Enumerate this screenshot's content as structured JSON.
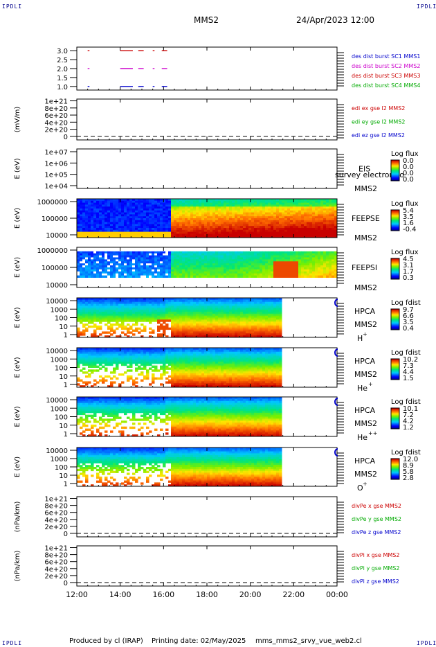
{
  "corners": {
    "tl": "IPDLI",
    "tr": "IPDLI",
    "bl": "IPDLI",
    "br": "IPDLI"
  },
  "header": {
    "spacecraft": "MMS2",
    "date": "24/Apr/2023 12:00"
  },
  "footer": {
    "produced_by": "Produced by cl (IRAP)",
    "printing_date": "Printing date: 02/May/2025",
    "script": "mms_mms2_srvy_vue_web2.cl"
  },
  "colors": {
    "mms1": "#0000cc",
    "mms2": "#cc00cc",
    "mms3": "#cc0000",
    "mms4": "#00aa00",
    "x": "#cc0000",
    "y": "#00aa00",
    "z": "#0000cc"
  },
  "chart_data": [
    {
      "type": "line",
      "id": "burst",
      "yticks": [
        "3.0",
        "2.5",
        "2.0",
        "1.5",
        "1.0"
      ],
      "ylim": [
        0.8,
        3.2
      ],
      "legend": [
        "des dist burst SC1 MMS1",
        "des dist burst SC2 MMS2",
        "des dist burst SC3 MMS3",
        "des dist burst SC4 MMS4"
      ],
      "series": [
        {
          "name": "des dist burst SC3 MMS3",
          "y": 3.0,
          "intervals": [
            [
              "12:30",
              "12:35"
            ],
            [
              "14:00",
              "14:35"
            ],
            [
              "14:50",
              "15:05"
            ],
            [
              "15:30",
              "15:35"
            ],
            [
              "15:55",
              "16:10"
            ]
          ]
        },
        {
          "name": "des dist burst SC2 MMS2",
          "y": 2.0,
          "intervals": [
            [
              "12:30",
              "12:35"
            ],
            [
              "14:00",
              "14:35"
            ],
            [
              "14:50",
              "15:05"
            ],
            [
              "15:30",
              "15:35"
            ],
            [
              "15:55",
              "16:10"
            ]
          ]
        },
        {
          "name": "des dist burst SC1 MMS1",
          "y": 1.0,
          "intervals": [
            [
              "12:30",
              "12:35"
            ],
            [
              "14:00",
              "14:35"
            ],
            [
              "14:50",
              "15:05"
            ],
            [
              "15:30",
              "15:35"
            ],
            [
              "15:55",
              "16:10"
            ]
          ]
        }
      ]
    },
    {
      "type": "line",
      "id": "edi",
      "ylabel": "(mV/m)",
      "yticks": [
        "1e+21",
        "8e+20",
        "6e+20",
        "4e+20",
        "2e+20",
        "0"
      ],
      "ylim": [
        -1e+20,
        1.05e+21
      ],
      "legend": [
        "edi ex gse l2 MMS2",
        "edi ey gse l2 MMS2",
        "edi ez gse l2 MMS2"
      ],
      "series": []
    },
    {
      "type": "heatmap",
      "id": "eis",
      "ylabel": "E (eV)",
      "yticks": [
        "1e+07",
        "1e+06",
        "1e+05",
        "1e+04"
      ],
      "instrument": "EIS",
      "spacecraft": "MMS2",
      "overlay_label": "survey electron to",
      "colorbar": {
        "title": "Log flux",
        "ticks": [
          "0.0",
          "0.0",
          "0.0",
          "0.0"
        ]
      }
    },
    {
      "type": "heatmap",
      "id": "feeps-e",
      "ylabel": "E (eV)",
      "yticks": [
        "1000000",
        "100000",
        "10000"
      ],
      "instrument": "FEEPSE",
      "spacecraft": "MMS2",
      "colorbar": {
        "title": "Log flux",
        "ticks": [
          "5.4",
          "3.5",
          "1.6",
          "-0.4"
        ]
      }
    },
    {
      "type": "heatmap",
      "id": "feeps-i",
      "ylabel": "E (eV)",
      "yticks": [
        "1000000",
        "100000",
        "10000"
      ],
      "instrument": "FEEPSI",
      "spacecraft": "MMS2",
      "colorbar": {
        "title": "Log flux",
        "ticks": [
          "4.5",
          "3.1",
          "1.7",
          "0.3"
        ]
      }
    },
    {
      "type": "heatmap",
      "id": "hpca-h",
      "ylabel": "E (eV)",
      "yticks": [
        "10000",
        "1000",
        "100",
        "10",
        "1"
      ],
      "instrument": "HPCA",
      "spacecraft": "MMS2",
      "species": "H",
      "charge": "+",
      "colorbar": {
        "title": "Log fdist",
        "ticks": [
          "9.7",
          "6.6",
          "3.5",
          "0.4"
        ]
      }
    },
    {
      "type": "heatmap",
      "id": "hpca-he",
      "ylabel": "E (eV)",
      "yticks": [
        "10000",
        "1000",
        "100",
        "10",
        "1"
      ],
      "instrument": "HPCA",
      "spacecraft": "MMS2",
      "species": "He",
      "charge": "+",
      "colorbar": {
        "title": "Log fdist",
        "ticks": [
          "10.2",
          "7.3",
          "4.4",
          "1.5"
        ]
      }
    },
    {
      "type": "heatmap",
      "id": "hpca-hepp",
      "ylabel": "E (eV)",
      "yticks": [
        "10000",
        "1000",
        "100",
        "10",
        "1"
      ],
      "instrument": "HPCA",
      "spacecraft": "MMS2",
      "species": "He",
      "charge": "++",
      "colorbar": {
        "title": "Log fdist",
        "ticks": [
          "10.1",
          "7.2",
          "4.2",
          "1.2"
        ]
      }
    },
    {
      "type": "heatmap",
      "id": "hpca-o",
      "ylabel": "E (eV)",
      "yticks": [
        "10000",
        "1000",
        "100",
        "10",
        "1"
      ],
      "instrument": "HPCA",
      "spacecraft": "MMS2",
      "species": "O",
      "charge": "+",
      "colorbar": {
        "title": "Log fdist",
        "ticks": [
          "12.0",
          "8.9",
          "5.8",
          "2.8"
        ]
      }
    },
    {
      "type": "line",
      "id": "divpe",
      "ylabel": "(nPa/km)",
      "yticks": [
        "1e+21",
        "8e+20",
        "6e+20",
        "4e+20",
        "2e+20",
        "0"
      ],
      "ylim": [
        -1e+20,
        1.05e+21
      ],
      "legend": [
        "divPe x gse MMS2",
        "divPe y gse MMS2",
        "divPe z gse MMS2"
      ],
      "series": []
    },
    {
      "type": "line",
      "id": "divpi",
      "ylabel": "(nPa/km)",
      "yticks": [
        "1e+21",
        "8e+20",
        "6e+20",
        "4e+20",
        "2e+20",
        "0"
      ],
      "ylim": [
        -1e+20,
        1.05e+21
      ],
      "legend": [
        "divPi x gse MMS2",
        "divPi y gse MMS2",
        "divPi z gse MMS2"
      ],
      "series": []
    }
  ],
  "xaxis": {
    "ticks": [
      "12:00",
      "14:00",
      "16:00",
      "18:00",
      "20:00",
      "22:00",
      "00:00"
    ],
    "range": [
      "12:00",
      "00:00"
    ]
  }
}
